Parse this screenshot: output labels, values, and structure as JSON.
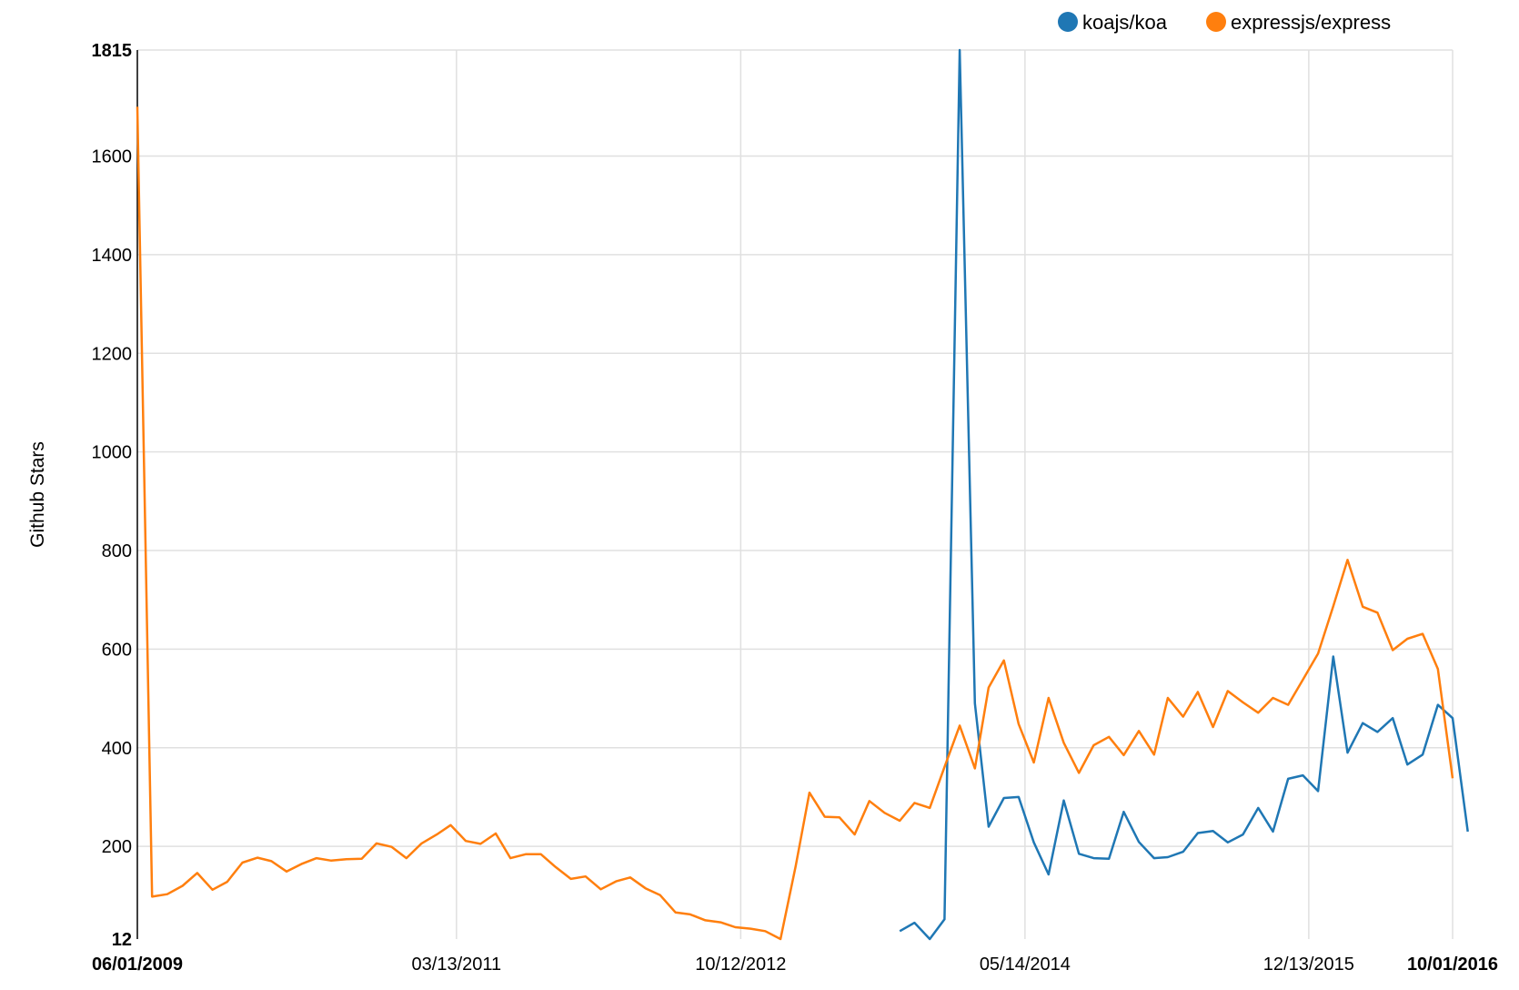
{
  "chart_data": {
    "type": "line",
    "title": "",
    "xlabel": "",
    "ylabel": "Github Stars",
    "ylim": [
      12,
      1815
    ],
    "xlim": [
      "2009-06-01",
      "2016-10-01"
    ],
    "y_ticks": [
      {
        "label": "12",
        "value": 12,
        "bold": true
      },
      {
        "label": "200",
        "value": 200,
        "bold": false
      },
      {
        "label": "400",
        "value": 400,
        "bold": false
      },
      {
        "label": "600",
        "value": 600,
        "bold": false
      },
      {
        "label": "800",
        "value": 800,
        "bold": false
      },
      {
        "label": "1000",
        "value": 1000,
        "bold": false
      },
      {
        "label": "1200",
        "value": 1200,
        "bold": false
      },
      {
        "label": "1400",
        "value": 1400,
        "bold": false
      },
      {
        "label": "1600",
        "value": 1600,
        "bold": false
      },
      {
        "label": "1815",
        "value": 1815,
        "bold": true
      }
    ],
    "x_ticks": [
      {
        "label": "06/01/2009",
        "date": "2009-06-01",
        "bold": true
      },
      {
        "label": "03/13/2011",
        "date": "2011-03-13",
        "bold": false
      },
      {
        "label": "10/12/2012",
        "date": "2012-10-12",
        "bold": false
      },
      {
        "label": "05/14/2014",
        "date": "2014-05-14",
        "bold": false
      },
      {
        "label": "12/13/2015",
        "date": "2015-12-13",
        "bold": false
      },
      {
        "label": "10/01/2016",
        "date": "2016-10-01",
        "bold": true
      }
    ],
    "grid": true,
    "legend_position": "top-right",
    "series": [
      {
        "name": "koajs/koa",
        "color": "#1f77b4",
        "points": [
          [
            "2013-09-01",
            28
          ],
          [
            "2013-10-01",
            45
          ],
          [
            "2013-11-01",
            12
          ],
          [
            "2013-12-01",
            52
          ],
          [
            "2014-01-01",
            1815
          ],
          [
            "2014-02-01",
            490
          ],
          [
            "2014-03-01",
            240
          ],
          [
            "2014-04-01",
            298
          ],
          [
            "2014-05-01",
            300
          ],
          [
            "2014-06-01",
            208
          ],
          [
            "2014-07-01",
            143
          ],
          [
            "2014-08-01",
            293
          ],
          [
            "2014-09-01",
            185
          ],
          [
            "2014-10-01",
            176
          ],
          [
            "2014-11-01",
            175
          ],
          [
            "2014-12-01",
            270
          ],
          [
            "2015-01-01",
            209
          ],
          [
            "2015-02-01",
            176
          ],
          [
            "2015-03-01",
            178
          ],
          [
            "2015-04-01",
            189
          ],
          [
            "2015-05-01",
            227
          ],
          [
            "2015-06-01",
            231
          ],
          [
            "2015-07-01",
            208
          ],
          [
            "2015-08-01",
            224
          ],
          [
            "2015-09-01",
            278
          ],
          [
            "2015-10-01",
            230
          ],
          [
            "2015-11-01",
            337
          ],
          [
            "2015-12-01",
            344
          ],
          [
            "2016-01-01",
            312
          ],
          [
            "2016-02-01",
            585
          ],
          [
            "2016-03-01",
            390
          ],
          [
            "2016-04-01",
            450
          ],
          [
            "2016-05-01",
            432
          ],
          [
            "2016-06-01",
            460
          ],
          [
            "2016-07-01",
            366
          ],
          [
            "2016-08-01",
            386
          ],
          [
            "2016-09-01",
            487
          ],
          [
            "2016-10-01",
            460
          ],
          [
            "2016-11-01",
            230
          ]
        ]
      },
      {
        "name": "expressjs/express",
        "color": "#ff7f0e",
        "points": [
          [
            "2009-06-01",
            1700
          ],
          [
            "2009-07-01",
            98
          ],
          [
            "2009-08-01",
            103
          ],
          [
            "2009-09-01",
            120
          ],
          [
            "2009-10-01",
            146
          ],
          [
            "2009-11-01",
            112
          ],
          [
            "2009-12-01",
            128
          ],
          [
            "2010-01-01",
            167
          ],
          [
            "2010-02-01",
            177
          ],
          [
            "2010-03-01",
            170
          ],
          [
            "2010-04-01",
            149
          ],
          [
            "2010-05-01",
            164
          ],
          [
            "2010-06-01",
            176
          ],
          [
            "2010-07-01",
            171
          ],
          [
            "2010-08-01",
            174
          ],
          [
            "2010-09-01",
            175
          ],
          [
            "2010-10-01",
            206
          ],
          [
            "2010-11-01",
            199
          ],
          [
            "2010-12-01",
            176
          ],
          [
            "2011-01-01",
            206
          ],
          [
            "2011-02-01",
            224
          ],
          [
            "2011-03-01",
            243
          ],
          [
            "2011-04-01",
            211
          ],
          [
            "2011-05-01",
            205
          ],
          [
            "2011-06-01",
            226
          ],
          [
            "2011-07-01",
            176
          ],
          [
            "2011-08-01",
            184
          ],
          [
            "2011-09-01",
            184
          ],
          [
            "2011-10-01",
            158
          ],
          [
            "2011-11-01",
            134
          ],
          [
            "2011-12-01",
            139
          ],
          [
            "2012-01-01",
            113
          ],
          [
            "2012-02-01",
            129
          ],
          [
            "2012-03-01",
            137
          ],
          [
            "2012-04-01",
            115
          ],
          [
            "2012-05-01",
            101
          ],
          [
            "2012-06-01",
            66
          ],
          [
            "2012-07-01",
            62
          ],
          [
            "2012-08-01",
            50
          ],
          [
            "2012-09-01",
            46
          ],
          [
            "2012-10-01",
            36
          ],
          [
            "2012-11-01",
            33
          ],
          [
            "2012-12-01",
            28
          ],
          [
            "2013-01-01",
            12
          ],
          [
            "2013-02-01",
            160
          ],
          [
            "2013-03-01",
            309
          ],
          [
            "2013-04-01",
            260
          ],
          [
            "2013-05-01",
            259
          ],
          [
            "2013-06-01",
            224
          ],
          [
            "2013-07-01",
            292
          ],
          [
            "2013-08-01",
            268
          ],
          [
            "2013-09-01",
            252
          ],
          [
            "2013-10-01",
            288
          ],
          [
            "2013-11-01",
            278
          ],
          [
            "2013-12-01",
            361
          ],
          [
            "2014-01-01",
            445
          ],
          [
            "2014-02-01",
            358
          ],
          [
            "2014-03-01",
            522
          ],
          [
            "2014-04-01",
            577
          ],
          [
            "2014-05-01",
            448
          ],
          [
            "2014-06-01",
            370
          ],
          [
            "2014-07-01",
            501
          ],
          [
            "2014-08-01",
            410
          ],
          [
            "2014-09-01",
            349
          ],
          [
            "2014-10-01",
            405
          ],
          [
            "2014-11-01",
            422
          ],
          [
            "2014-12-01",
            385
          ],
          [
            "2015-01-01",
            434
          ],
          [
            "2015-02-01",
            386
          ],
          [
            "2015-03-01",
            501
          ],
          [
            "2015-04-01",
            463
          ],
          [
            "2015-05-01",
            513
          ],
          [
            "2015-06-01",
            442
          ],
          [
            "2015-07-01",
            515
          ],
          [
            "2015-08-01",
            492
          ],
          [
            "2015-09-01",
            471
          ],
          [
            "2015-10-01",
            501
          ],
          [
            "2015-11-01",
            487
          ],
          [
            "2015-12-01",
            538
          ],
          [
            "2016-01-01",
            591
          ],
          [
            "2016-02-01",
            687
          ],
          [
            "2016-03-01",
            781
          ],
          [
            "2016-04-01",
            686
          ],
          [
            "2016-05-01",
            674
          ],
          [
            "2016-06-01",
            598
          ],
          [
            "2016-07-01",
            621
          ],
          [
            "2016-08-01",
            631
          ],
          [
            "2016-09-01",
            560
          ],
          [
            "2016-10-01",
            338
          ]
        ]
      }
    ]
  }
}
